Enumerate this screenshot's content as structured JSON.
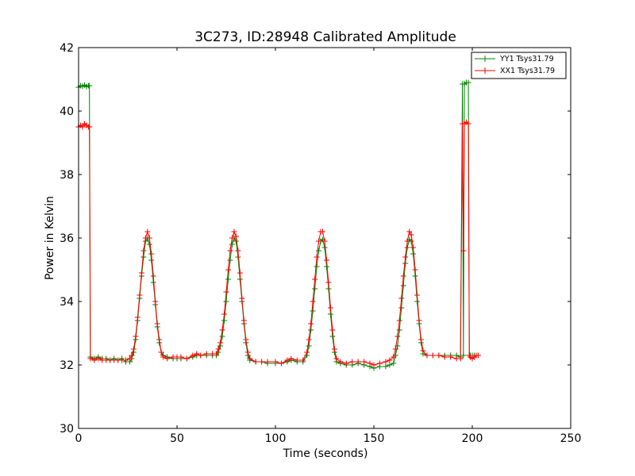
{
  "chart_data": {
    "type": "line",
    "title": "3C273, ID:28948 Calibrated Amplitude",
    "xlabel": "Time (seconds)",
    "ylabel": "Power in Kelvin",
    "xlim": [
      0,
      250
    ],
    "ylim": [
      30,
      42
    ],
    "x_ticks": [
      "0",
      "50",
      "100",
      "150",
      "200",
      "250"
    ],
    "y_ticks": [
      "30",
      "32",
      "34",
      "36",
      "38",
      "40",
      "42"
    ],
    "grid": false,
    "legend_position": "top-right",
    "marker": "+",
    "series": [
      {
        "name": "YY1 Tsys31.79",
        "color": "#008000",
        "points": [
          [
            0,
            40.75
          ],
          [
            1,
            40.8
          ],
          [
            2,
            40.78
          ],
          [
            3,
            40.82
          ],
          [
            4,
            40.77
          ],
          [
            5,
            40.8
          ],
          [
            5.5,
            40.8
          ],
          [
            6,
            32.25
          ],
          [
            8,
            32.2
          ],
          [
            10,
            32.25
          ],
          [
            12,
            32.2
          ],
          [
            14,
            32.2
          ],
          [
            16,
            32.15
          ],
          [
            18,
            32.2
          ],
          [
            20,
            32.15
          ],
          [
            22,
            32.2
          ],
          [
            24,
            32.1
          ],
          [
            26,
            32.1
          ],
          [
            27,
            32.2
          ],
          [
            28,
            32.4
          ],
          [
            29,
            32.8
          ],
          [
            30,
            33.4
          ],
          [
            31,
            34.1
          ],
          [
            32,
            34.8
          ],
          [
            33,
            35.4
          ],
          [
            34,
            35.9
          ],
          [
            35,
            36.0
          ],
          [
            36,
            35.8
          ],
          [
            37,
            35.3
          ],
          [
            38,
            34.6
          ],
          [
            39,
            33.9
          ],
          [
            40,
            33.2
          ],
          [
            41,
            32.7
          ],
          [
            42,
            32.4
          ],
          [
            43,
            32.3
          ],
          [
            45,
            32.25
          ],
          [
            48,
            32.2
          ],
          [
            50,
            32.2
          ],
          [
            52,
            32.2
          ],
          [
            55,
            32.2
          ],
          [
            58,
            32.25
          ],
          [
            60,
            32.3
          ],
          [
            62,
            32.3
          ],
          [
            65,
            32.3
          ],
          [
            68,
            32.3
          ],
          [
            70,
            32.3
          ],
          [
            71,
            32.4
          ],
          [
            72,
            32.6
          ],
          [
            73,
            32.9
          ],
          [
            74,
            33.4
          ],
          [
            75,
            34.0
          ],
          [
            76,
            34.7
          ],
          [
            77,
            35.3
          ],
          [
            78,
            35.8
          ],
          [
            79,
            36.0
          ],
          [
            80,
            35.9
          ],
          [
            81,
            35.4
          ],
          [
            82,
            34.7
          ],
          [
            83,
            34.0
          ],
          [
            84,
            33.3
          ],
          [
            85,
            32.7
          ],
          [
            86,
            32.3
          ],
          [
            87,
            32.15
          ],
          [
            90,
            32.1
          ],
          [
            93,
            32.1
          ],
          [
            96,
            32.05
          ],
          [
            100,
            32.05
          ],
          [
            103,
            32.05
          ],
          [
            106,
            32.1
          ],
          [
            108,
            32.15
          ],
          [
            111,
            32.1
          ],
          [
            114,
            32.1
          ],
          [
            116,
            32.3
          ],
          [
            117,
            32.6
          ],
          [
            118,
            33.1
          ],
          [
            119,
            33.7
          ],
          [
            120,
            34.4
          ],
          [
            121,
            35.1
          ],
          [
            122,
            35.6
          ],
          [
            123,
            35.9
          ],
          [
            124,
            35.95
          ],
          [
            125,
            35.7
          ],
          [
            126,
            35.1
          ],
          [
            127,
            34.4
          ],
          [
            128,
            33.6
          ],
          [
            129,
            32.9
          ],
          [
            130,
            32.4
          ],
          [
            131,
            32.1
          ],
          [
            133,
            32.05
          ],
          [
            136,
            32.0
          ],
          [
            139,
            32.0
          ],
          [
            142,
            32.05
          ],
          [
            145,
            32.0
          ],
          [
            148,
            31.95
          ],
          [
            150,
            31.9
          ],
          [
            153,
            31.95
          ],
          [
            156,
            31.95
          ],
          [
            158,
            32.0
          ],
          [
            160,
            32.05
          ],
          [
            161,
            32.3
          ],
          [
            162,
            32.6
          ],
          [
            163,
            33.1
          ],
          [
            164,
            33.8
          ],
          [
            165,
            34.5
          ],
          [
            166,
            35.2
          ],
          [
            167,
            35.7
          ],
          [
            168,
            35.95
          ],
          [
            169,
            35.9
          ],
          [
            170,
            35.5
          ],
          [
            171,
            34.8
          ],
          [
            172,
            34.0
          ],
          [
            173,
            33.3
          ],
          [
            174,
            32.7
          ],
          [
            175,
            32.35
          ],
          [
            177,
            32.3
          ],
          [
            180,
            32.3
          ],
          [
            183,
            32.3
          ],
          [
            186,
            32.3
          ],
          [
            189,
            32.3
          ],
          [
            192,
            32.3
          ],
          [
            194,
            32.25
          ],
          [
            195,
            40.85
          ],
          [
            195.5,
            32.3
          ],
          [
            196,
            40.85
          ],
          [
            197,
            40.9
          ],
          [
            198,
            40.9
          ],
          [
            198.5,
            32.3
          ],
          [
            199,
            32.3
          ],
          [
            200,
            32.3
          ],
          [
            201,
            32.3
          ],
          [
            202,
            32.3
          ],
          [
            203,
            32.3
          ]
        ]
      },
      {
        "name": "XX1 Tsys31.79",
        "color": "#ff0000",
        "points": [
          [
            0,
            39.5
          ],
          [
            1,
            39.55
          ],
          [
            2,
            39.5
          ],
          [
            3,
            39.6
          ],
          [
            4,
            39.55
          ],
          [
            5,
            39.5
          ],
          [
            5.5,
            39.5
          ],
          [
            6,
            32.2
          ],
          [
            8,
            32.15
          ],
          [
            10,
            32.2
          ],
          [
            12,
            32.15
          ],
          [
            14,
            32.15
          ],
          [
            16,
            32.15
          ],
          [
            18,
            32.15
          ],
          [
            20,
            32.15
          ],
          [
            22,
            32.15
          ],
          [
            24,
            32.15
          ],
          [
            26,
            32.2
          ],
          [
            27,
            32.3
          ],
          [
            28,
            32.5
          ],
          [
            29,
            32.9
          ],
          [
            30,
            33.5
          ],
          [
            31,
            34.2
          ],
          [
            32,
            34.9
          ],
          [
            33,
            35.6
          ],
          [
            34,
            36.0
          ],
          [
            35,
            36.2
          ],
          [
            36,
            36.0
          ],
          [
            37,
            35.5
          ],
          [
            38,
            34.8
          ],
          [
            39,
            34.0
          ],
          [
            40,
            33.3
          ],
          [
            41,
            32.8
          ],
          [
            42,
            32.4
          ],
          [
            43,
            32.25
          ],
          [
            45,
            32.2
          ],
          [
            48,
            32.25
          ],
          [
            50,
            32.25
          ],
          [
            52,
            32.25
          ],
          [
            55,
            32.2
          ],
          [
            58,
            32.3
          ],
          [
            60,
            32.35
          ],
          [
            62,
            32.3
          ],
          [
            65,
            32.35
          ],
          [
            68,
            32.35
          ],
          [
            70,
            32.35
          ],
          [
            71,
            32.5
          ],
          [
            72,
            32.7
          ],
          [
            73,
            33.1
          ],
          [
            74,
            33.6
          ],
          [
            75,
            34.3
          ],
          [
            76,
            35.0
          ],
          [
            77,
            35.6
          ],
          [
            78,
            36.0
          ],
          [
            79,
            36.2
          ],
          [
            80,
            36.05
          ],
          [
            81,
            35.6
          ],
          [
            82,
            34.9
          ],
          [
            83,
            34.1
          ],
          [
            84,
            33.4
          ],
          [
            85,
            32.8
          ],
          [
            86,
            32.4
          ],
          [
            87,
            32.2
          ],
          [
            90,
            32.1
          ],
          [
            93,
            32.1
          ],
          [
            96,
            32.1
          ],
          [
            100,
            32.1
          ],
          [
            103,
            32.05
          ],
          [
            106,
            32.15
          ],
          [
            108,
            32.2
          ],
          [
            111,
            32.15
          ],
          [
            114,
            32.15
          ],
          [
            116,
            32.4
          ],
          [
            117,
            32.8
          ],
          [
            118,
            33.3
          ],
          [
            119,
            34.0
          ],
          [
            120,
            34.7
          ],
          [
            121,
            35.4
          ],
          [
            122,
            35.9
          ],
          [
            123,
            36.2
          ],
          [
            124,
            36.2
          ],
          [
            125,
            35.9
          ],
          [
            126,
            35.3
          ],
          [
            127,
            34.6
          ],
          [
            128,
            33.8
          ],
          [
            129,
            33.1
          ],
          [
            130,
            32.5
          ],
          [
            131,
            32.2
          ],
          [
            133,
            32.1
          ],
          [
            136,
            32.05
          ],
          [
            139,
            32.1
          ],
          [
            142,
            32.1
          ],
          [
            145,
            32.1
          ],
          [
            148,
            32.05
          ],
          [
            150,
            32.0
          ],
          [
            153,
            32.05
          ],
          [
            156,
            32.1
          ],
          [
            158,
            32.15
          ],
          [
            160,
            32.25
          ],
          [
            161,
            32.5
          ],
          [
            162,
            32.9
          ],
          [
            163,
            33.4
          ],
          [
            164,
            34.1
          ],
          [
            165,
            34.8
          ],
          [
            166,
            35.4
          ],
          [
            167,
            35.9
          ],
          [
            168,
            36.2
          ],
          [
            169,
            36.1
          ],
          [
            170,
            35.7
          ],
          [
            171,
            35.0
          ],
          [
            172,
            34.2
          ],
          [
            173,
            33.4
          ],
          [
            174,
            32.8
          ],
          [
            175,
            32.45
          ],
          [
            177,
            32.3
          ],
          [
            180,
            32.3
          ],
          [
            183,
            32.3
          ],
          [
            186,
            32.25
          ],
          [
            189,
            32.25
          ],
          [
            192,
            32.2
          ],
          [
            194,
            32.2
          ],
          [
            195,
            39.6
          ],
          [
            195.5,
            35.6
          ],
          [
            196,
            39.6
          ],
          [
            197,
            39.65
          ],
          [
            198,
            39.6
          ],
          [
            198.5,
            32.3
          ],
          [
            199,
            32.25
          ],
          [
            200,
            32.2
          ],
          [
            201,
            32.25
          ],
          [
            202,
            32.3
          ],
          [
            203,
            32.3
          ]
        ]
      }
    ]
  }
}
